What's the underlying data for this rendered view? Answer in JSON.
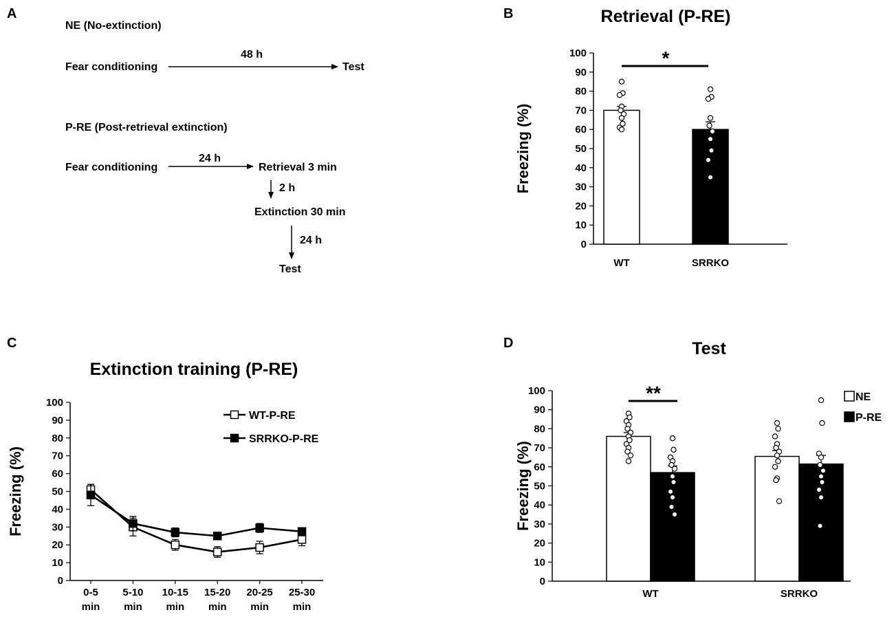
{
  "panels": {
    "a": {
      "letter": "A",
      "ne_title": "NE (No-extinction)",
      "ne_start": "Fear conditioning",
      "ne_interval": "48 h",
      "ne_end": "Test",
      "pre_title": "P-RE (Post-retrieval extinction)",
      "pre_start": "Fear conditioning",
      "pre_interval1": "24 h",
      "pre_retrieval": "Retrieval 3 min",
      "pre_interval2": "2 h",
      "pre_extinction": "Extinction 30 min",
      "pre_interval3": "24 h",
      "pre_end": "Test"
    },
    "b": {
      "letter": "B"
    },
    "c": {
      "letter": "C"
    },
    "d": {
      "letter": "D"
    }
  },
  "chart_data": [
    {
      "id": "B",
      "type": "bar",
      "title": "Retrieval (P-RE)",
      "ylabel": "Freezing (%)",
      "xlabel": "",
      "ylim": [
        0,
        100
      ],
      "yticks": [
        "0",
        "10",
        "20",
        "30",
        "40",
        "50",
        "60",
        "70",
        "80",
        "90",
        "100"
      ],
      "categories": [
        "WT",
        "SRRKO"
      ],
      "values": [
        70,
        60
      ],
      "errors": [
        2,
        4
      ],
      "fills": [
        "#ffffff",
        "#000000"
      ],
      "points": [
        [
          85,
          79,
          78,
          72,
          70,
          68,
          66,
          63,
          61,
          60
        ],
        [
          81,
          77,
          76,
          66,
          62,
          59,
          55,
          49,
          44,
          35
        ]
      ],
      "significance": "*"
    },
    {
      "id": "C",
      "type": "line",
      "title": "Extinction training (P-RE)",
      "ylabel": "Freezing (%)",
      "xlabel": "",
      "ylim": [
        0,
        100
      ],
      "yticks": [
        "0",
        "10",
        "20",
        "30",
        "40",
        "50",
        "60",
        "70",
        "80",
        "90",
        "100"
      ],
      "categories": [
        [
          "0-5",
          "min"
        ],
        [
          "5-10",
          "min"
        ],
        [
          "10-15",
          "min"
        ],
        [
          "15-20",
          "min"
        ],
        [
          "20-25",
          "min"
        ],
        [
          "25-30",
          "min"
        ]
      ],
      "legend_position": "top-right",
      "series": [
        {
          "name": "WT-P-RE",
          "values": [
            51,
            30,
            20,
            16,
            18.5,
            23
          ],
          "errors": [
            3,
            5,
            3,
            3,
            3.5,
            3.5
          ],
          "marker": "open-square"
        },
        {
          "name": "SRRKO-P-RE",
          "values": [
            48,
            32,
            27,
            25,
            29.5,
            27.5
          ],
          "errors": [
            6,
            4,
            2.5,
            2,
            2.5,
            2
          ],
          "marker": "filled-square"
        }
      ]
    },
    {
      "id": "D",
      "type": "bar",
      "title": "Test",
      "ylabel": "Freezing (%)",
      "xlabel": "",
      "ylim": [
        0,
        100
      ],
      "yticks": [
        "0",
        "10",
        "20",
        "30",
        "40",
        "50",
        "60",
        "70",
        "80",
        "90",
        "100"
      ],
      "categories": [
        "WT",
        "SRRKO"
      ],
      "legend_position": "top-right",
      "series": [
        {
          "name": "NE",
          "fill": "#ffffff",
          "values": [
            76,
            65.5
          ],
          "errors": [
            2,
            3
          ],
          "points": [
            [
              88,
              86,
              84,
              82,
              80,
              78,
              76,
              74,
              72,
              70,
              68,
              66,
              63
            ],
            [
              83,
              80,
              76,
              72,
              70,
              68,
              66,
              63,
              60,
              54,
              53,
              42
            ]
          ]
        },
        {
          "name": "P-RE",
          "fill": "#000000",
          "values": [
            57,
            61.5
          ],
          "errors": [
            3.5,
            4.5
          ],
          "points": [
            [
              75,
              69,
              65,
              63,
              61,
              59,
              55,
              52,
              47,
              44,
              39,
              35
            ],
            [
              95,
              83,
              67,
              65,
              61,
              58,
              55,
              52,
              48,
              44,
              29
            ]
          ]
        }
      ],
      "significance": "**"
    }
  ]
}
